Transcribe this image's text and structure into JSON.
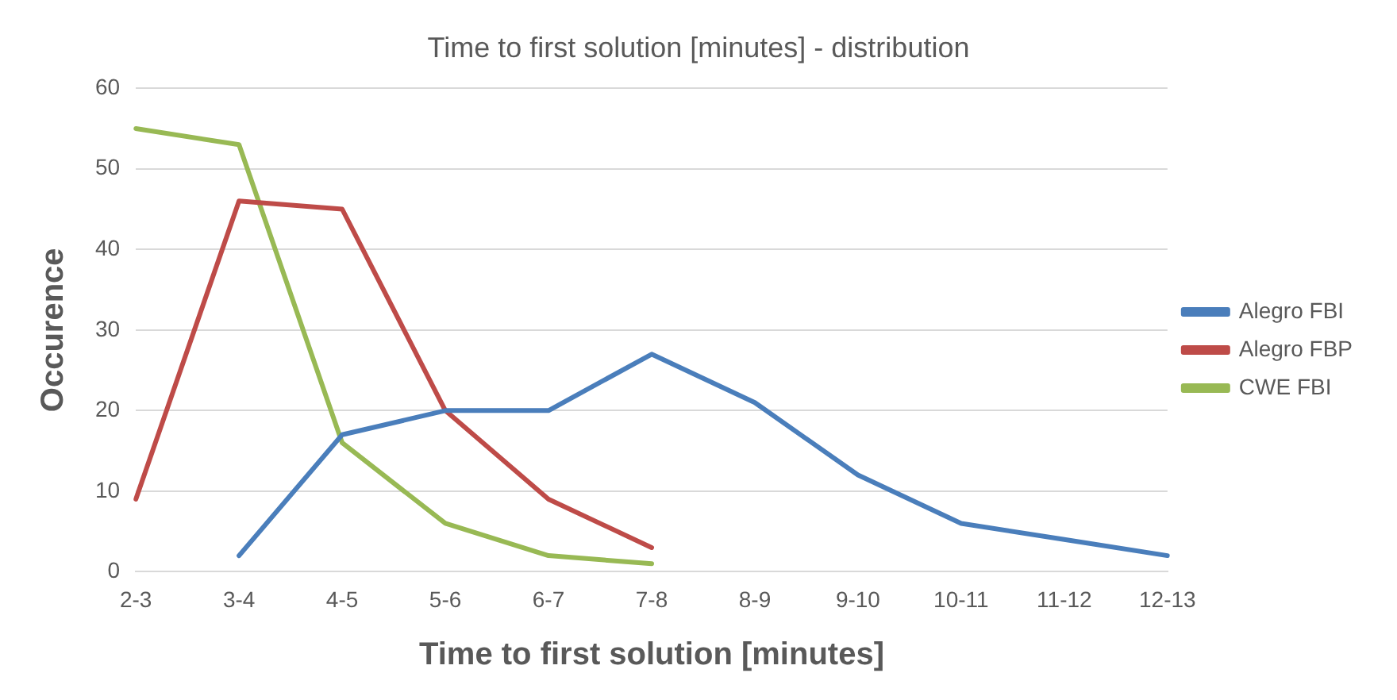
{
  "chart_data": {
    "type": "line",
    "title": "Time to first solution [minutes] - distribution",
    "xlabel": "Time to first solution [minutes]",
    "ylabel": "Occurence",
    "categories": [
      "2-3",
      "3-4",
      "4-5",
      "5-6",
      "6-7",
      "7-8",
      "8-9",
      "9-10",
      "10-11",
      "11-12",
      "12-13"
    ],
    "series": [
      {
        "name": "Alegro FBI",
        "color": "#4a7ebb",
        "values": [
          null,
          2,
          17,
          20,
          20,
          27,
          21,
          12,
          6,
          4,
          2
        ]
      },
      {
        "name": "Alegro FBP",
        "color": "#be4b48",
        "values": [
          9,
          46,
          45,
          20,
          9,
          3,
          null,
          null,
          null,
          null,
          null
        ]
      },
      {
        "name": "CWE FBI",
        "color": "#98b954",
        "values": [
          55,
          53,
          16,
          6,
          2,
          1,
          null,
          null,
          null,
          null,
          null
        ]
      }
    ],
    "ylim": [
      0,
      60
    ],
    "yticks": [
      0,
      10,
      20,
      30,
      40,
      50,
      60
    ],
    "grid": "y",
    "legend": "right",
    "marker": "none",
    "line_style": "solid"
  }
}
